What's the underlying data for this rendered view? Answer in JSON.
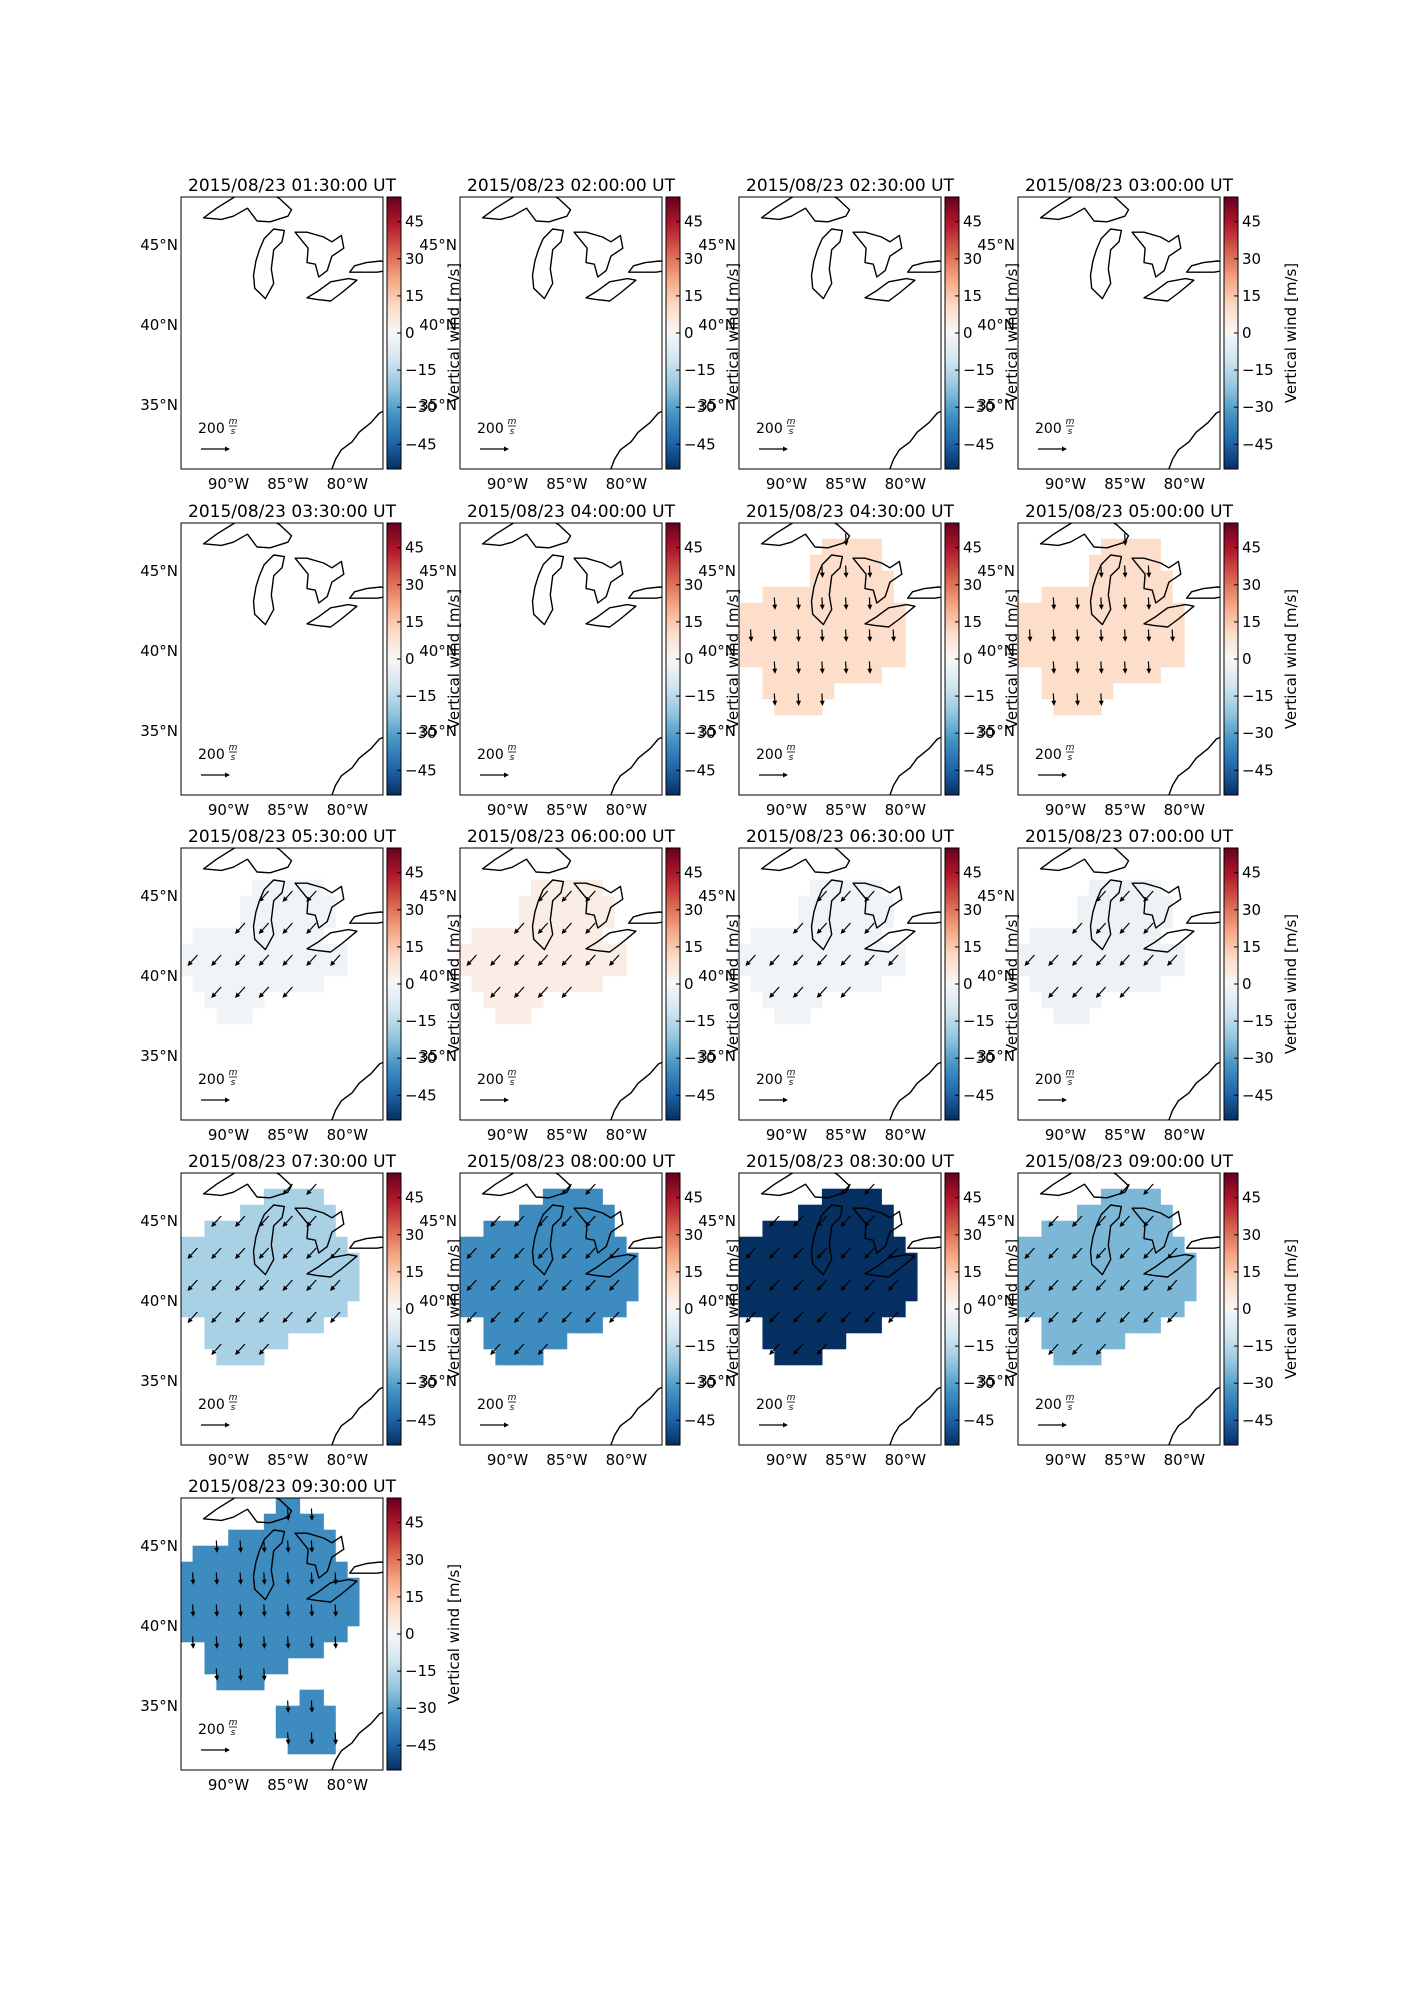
{
  "figure": {
    "colorbar": {
      "label": "Vertical wind [m/s]",
      "ticks": [
        45,
        30,
        15,
        0,
        -15,
        -30,
        -45
      ],
      "tick_labels": [
        "45",
        "30",
        "15",
        "0",
        "−15",
        "−30",
        "−45"
      ],
      "range": [
        -55,
        55
      ],
      "colormap": "RdBu_r",
      "colors": {
        "low": "#053061",
        "mid": "#f7f7f7",
        "high": "#67001f"
      }
    },
    "reference_vector": {
      "magnitude": "200",
      "unit": "m/s"
    }
  },
  "chart_data": {
    "type": "heatmap",
    "xlabel": "",
    "ylabel": "",
    "x_ticks": [
      "90°W",
      "85°W",
      "80°W"
    ],
    "y_ticks": [
      "45°N",
      "40°N",
      "35°N"
    ],
    "xlim": [
      -94,
      -77
    ],
    "ylim": [
      31,
      48
    ],
    "grid": false,
    "panels": [
      {
        "title": "2015/08/23 01:30:00 UT",
        "vertical_wind": null,
        "region": "none",
        "arrows": false,
        "arrow_dir": "none"
      },
      {
        "title": "2015/08/23 02:00:00 UT",
        "vertical_wind": null,
        "region": "none",
        "arrows": false,
        "arrow_dir": "none"
      },
      {
        "title": "2015/08/23 02:30:00 UT",
        "vertical_wind": null,
        "region": "none",
        "arrows": false,
        "arrow_dir": "none"
      },
      {
        "title": "2015/08/23 03:00:00 UT",
        "vertical_wind": null,
        "region": "none",
        "arrows": false,
        "arrow_dir": "none"
      },
      {
        "title": "2015/08/23 03:30:00 UT",
        "vertical_wind": null,
        "region": "none",
        "arrows": false,
        "arrow_dir": "none"
      },
      {
        "title": "2015/08/23 04:00:00 UT",
        "vertical_wind": null,
        "region": "none",
        "arrows": false,
        "arrow_dir": "none"
      },
      {
        "title": "2015/08/23 04:30:00 UT",
        "vertical_wind": 10,
        "region": "main",
        "arrows": true,
        "arrow_dir": "south"
      },
      {
        "title": "2015/08/23 05:00:00 UT",
        "vertical_wind": 10,
        "region": "main",
        "arrows": true,
        "arrow_dir": "south"
      },
      {
        "title": "2015/08/23 05:30:00 UT",
        "vertical_wind": -2,
        "region": "narrow",
        "arrows": true,
        "arrow_dir": "southwest"
      },
      {
        "title": "2015/08/23 06:00:00 UT",
        "vertical_wind": 4,
        "region": "narrow",
        "arrows": true,
        "arrow_dir": "southwest"
      },
      {
        "title": "2015/08/23 06:30:00 UT",
        "vertical_wind": -2,
        "region": "narrow",
        "arrows": true,
        "arrow_dir": "southwest"
      },
      {
        "title": "2015/08/23 07:00:00 UT",
        "vertical_wind": -3,
        "region": "narrow",
        "arrows": true,
        "arrow_dir": "southwest"
      },
      {
        "title": "2015/08/23 07:30:00 UT",
        "vertical_wind": -18,
        "region": "wide",
        "arrows": true,
        "arrow_dir": "southwest"
      },
      {
        "title": "2015/08/23 08:00:00 UT",
        "vertical_wind": -35,
        "region": "wide",
        "arrows": true,
        "arrow_dir": "southwest"
      },
      {
        "title": "2015/08/23 08:30:00 UT",
        "vertical_wind": -55,
        "region": "wide",
        "arrows": true,
        "arrow_dir": "southwest"
      },
      {
        "title": "2015/08/23 09:00:00 UT",
        "vertical_wind": -25,
        "region": "wide",
        "arrows": true,
        "arrow_dir": "southwest"
      },
      {
        "title": "2015/08/23 09:30:00 UT",
        "vertical_wind": -35,
        "region": "wide_south",
        "arrows": true,
        "arrow_dir": "south"
      }
    ]
  }
}
